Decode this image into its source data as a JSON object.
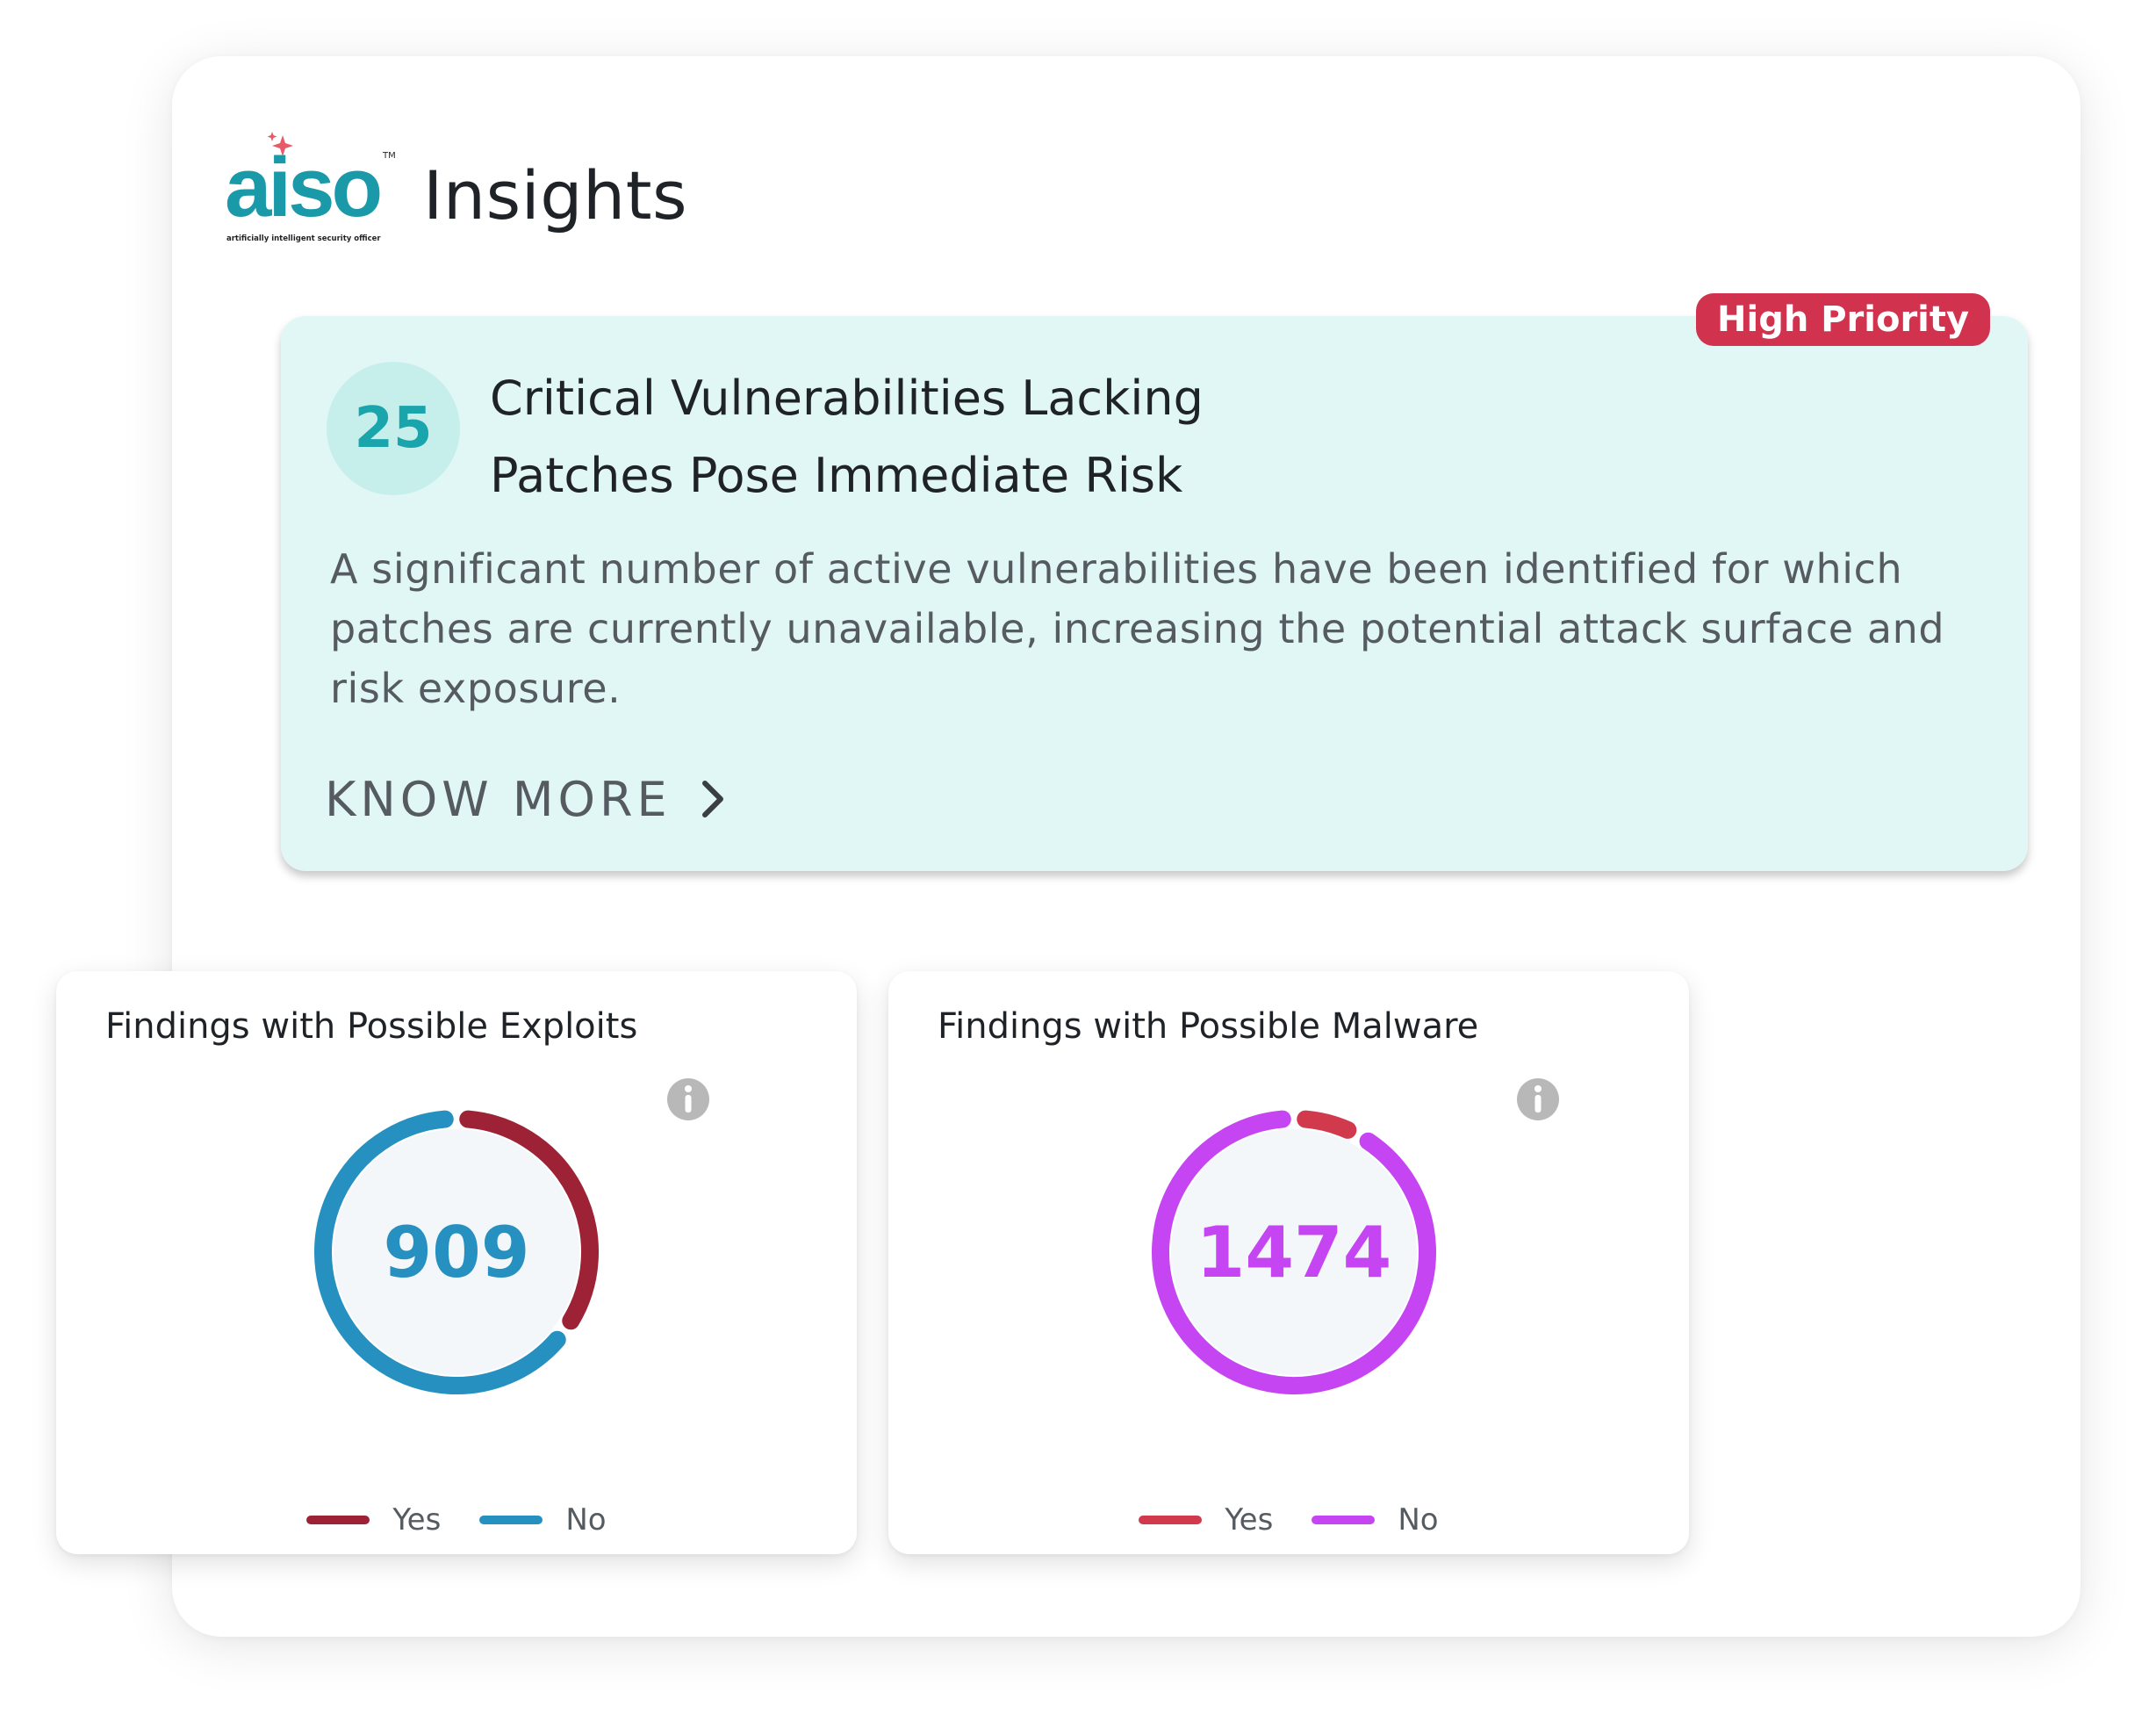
{
  "header": {
    "logo_text": "aiso",
    "logo_tagline": "artificially intelligent security officer",
    "title": "Insights",
    "logo_colors": {
      "text": "#1a9aa8",
      "spark": "#e85a6a"
    }
  },
  "insight": {
    "count": "25",
    "priority": "High Priority",
    "title_line1": "Critical Vulnerabilities Lacking",
    "title_line2": "Patches Pose Immediate Risk",
    "description": "A significant number of active vulnerabilities have been identified for which patches are currently unavailable, increasing the potential attack surface and risk exposure.",
    "cta_label": "KNOW MORE",
    "cta_icon": "chevron-right-icon",
    "colors": {
      "card_bg": "#e0f7f6",
      "badge": "#d1334e",
      "count": "#1aa5ad"
    }
  },
  "cards": [
    {
      "title": "Findings with Possible Exploits",
      "total": "909",
      "info_icon": "info-icon",
      "chart_data": {
        "type": "pie",
        "variant": "donut",
        "categories": [
          "Yes",
          "No"
        ],
        "values": [
          35,
          65
        ],
        "colors": [
          "#9e2236",
          "#2690c0"
        ],
        "center_color": "#2690c0",
        "legend": "bottom-center"
      }
    },
    {
      "title": "Findings with Possible Malware",
      "total": "1474",
      "info_icon": "info-icon",
      "chart_data": {
        "type": "pie",
        "variant": "donut",
        "categories": [
          "Yes",
          "No"
        ],
        "values": [
          8,
          92
        ],
        "colors": [
          "#d13a4d",
          "#c645f2"
        ],
        "center_color": "#c645f2",
        "legend": "bottom-center"
      }
    }
  ]
}
